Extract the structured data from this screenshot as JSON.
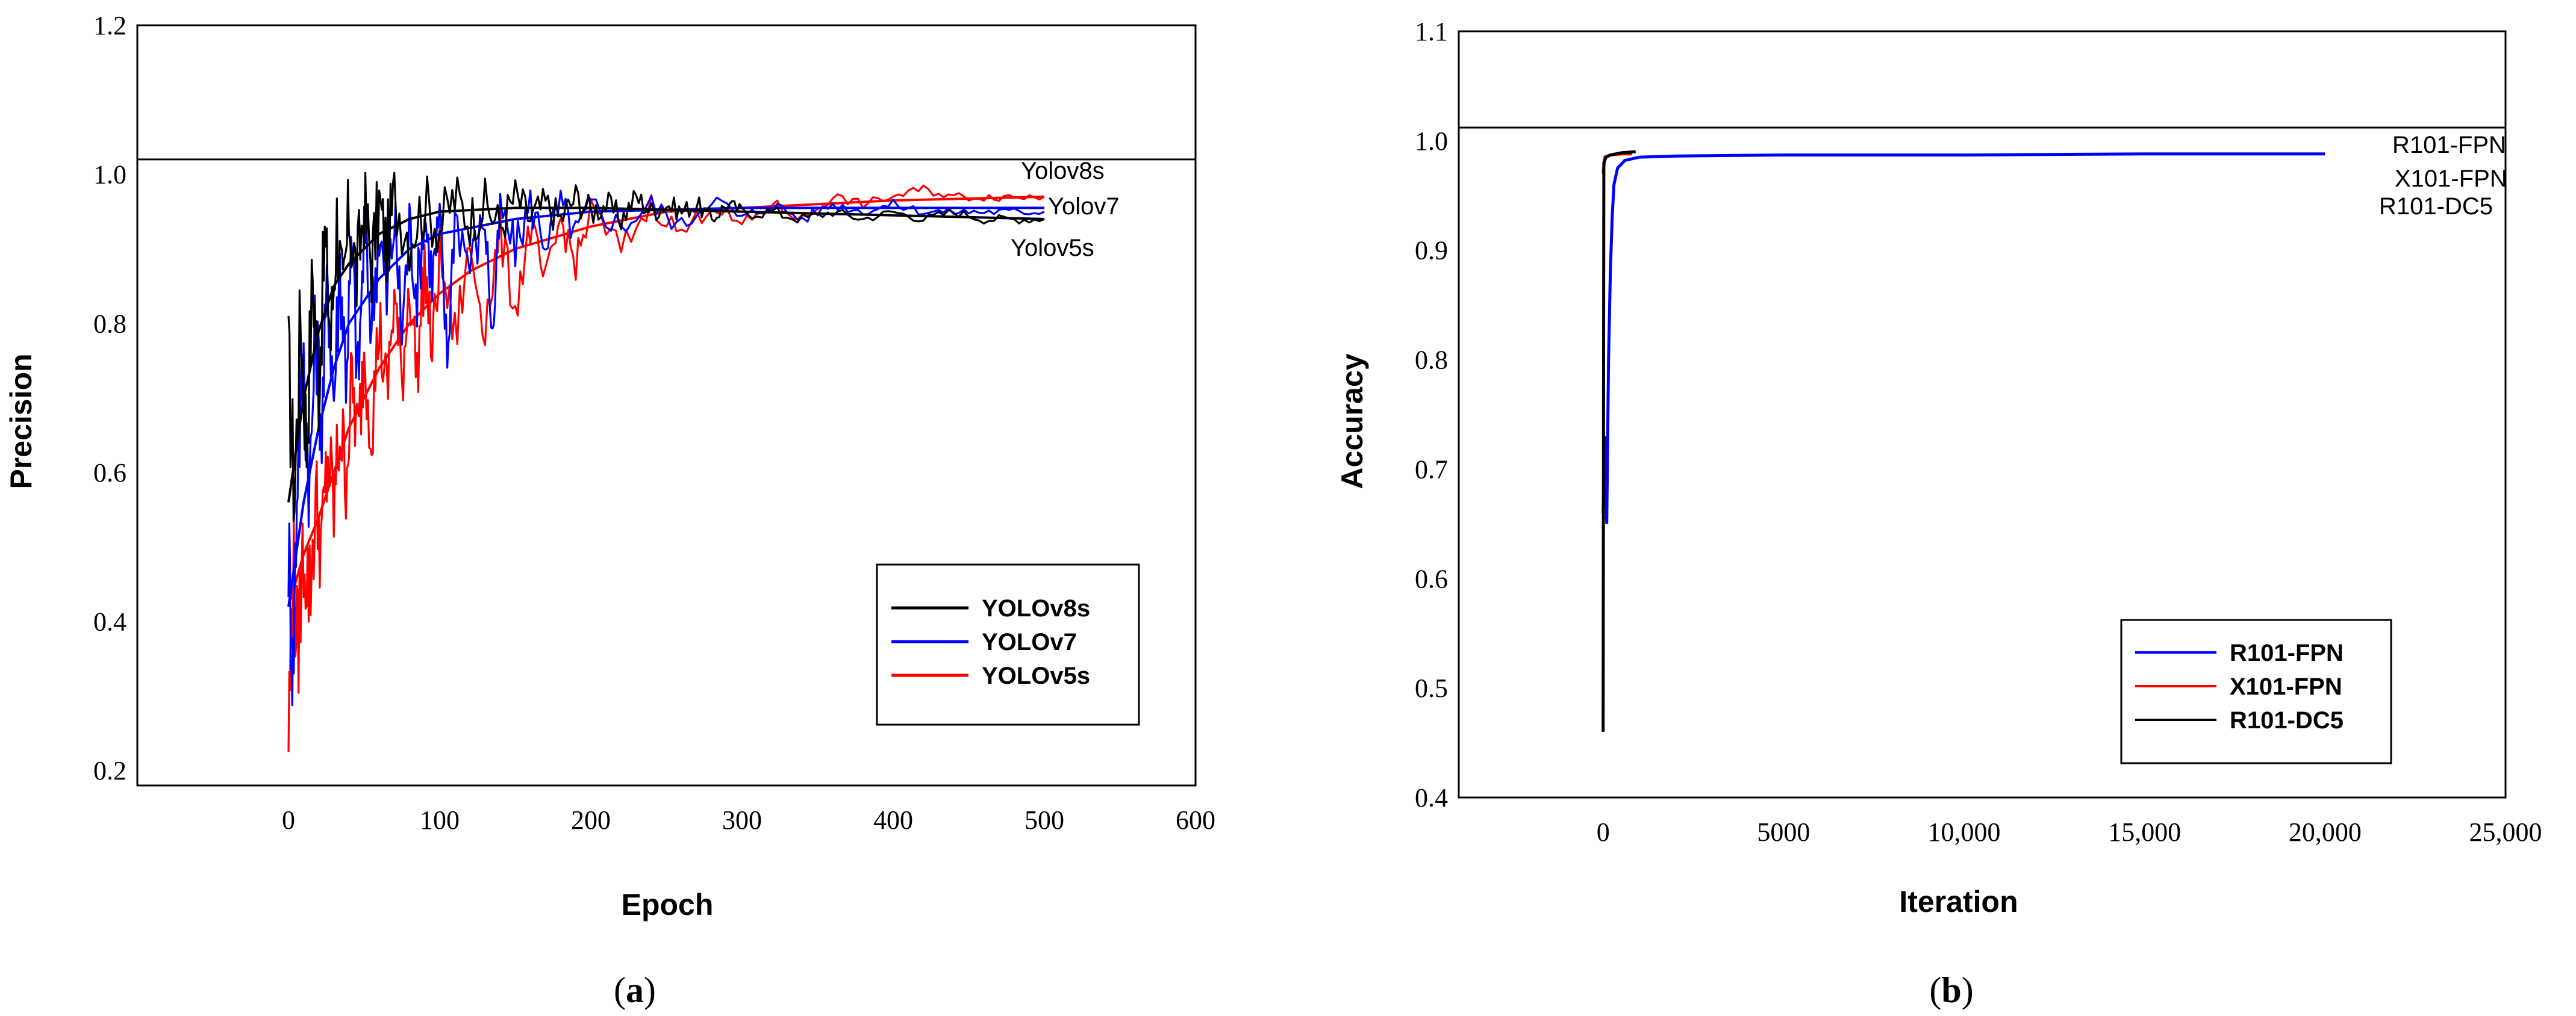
{
  "chart_data": [
    {
      "panel_label": "a",
      "type": "line",
      "title": "",
      "xlabel": "Epoch",
      "ylabel": "Precision",
      "xlim": [
        -100,
        600
      ],
      "ylim": [
        0.18,
        1.2
      ],
      "x_ticks": [
        0,
        100,
        200,
        300,
        400,
        500,
        600
      ],
      "y_ticks": [
        0.2,
        0.4,
        0.6,
        0.8,
        1.0,
        1.2
      ],
      "y_tick_labels": [
        "0.2",
        "0.4",
        "0.6",
        "0.8",
        "1.0",
        "1.2"
      ],
      "reference_line_y": 1.02,
      "grid": false,
      "legend_position": "lower-right",
      "series": [
        {
          "name": "YOLOv8s",
          "color": "#000000",
          "raw": [
            [
              0,
              0.74
            ],
            [
              4,
              0.57
            ],
            [
              8,
              0.81
            ],
            [
              12,
              0.64
            ],
            [
              16,
              0.87
            ],
            [
              20,
              0.72
            ],
            [
              24,
              0.91
            ],
            [
              28,
              0.78
            ],
            [
              32,
              0.94
            ],
            [
              36,
              0.82
            ],
            [
              40,
              0.95
            ],
            [
              45,
              0.86
            ],
            [
              50,
              0.96
            ],
            [
              55,
              0.88
            ],
            [
              60,
              0.96
            ],
            [
              65,
              0.9
            ],
            [
              70,
              0.97
            ],
            [
              80,
              0.92
            ],
            [
              90,
              0.96
            ],
            [
              100,
              0.93
            ],
            [
              110,
              0.97
            ],
            [
              120,
              0.94
            ],
            [
              130,
              0.96
            ],
            [
              140,
              0.93
            ],
            [
              150,
              0.97
            ],
            [
              160,
              0.94
            ],
            [
              170,
              0.96
            ],
            [
              180,
              0.94
            ],
            [
              190,
              0.97
            ],
            [
              200,
              0.95
            ],
            [
              210,
              0.96
            ],
            [
              220,
              0.94
            ],
            [
              230,
              0.97
            ],
            [
              240,
              0.95
            ],
            [
              250,
              0.96
            ],
            [
              260,
              0.95
            ],
            [
              270,
              0.96
            ],
            [
              280,
              0.94
            ],
            [
              290,
              0.96
            ],
            [
              300,
              0.95
            ],
            [
              320,
              0.95
            ],
            [
              340,
              0.94
            ],
            [
              360,
              0.95
            ],
            [
              380,
              0.94
            ],
            [
              400,
              0.95
            ],
            [
              420,
              0.94
            ],
            [
              440,
              0.95
            ],
            [
              460,
              0.94
            ],
            [
              480,
              0.94
            ],
            [
              500,
              0.94
            ]
          ],
          "smooth": [
            [
              0,
              0.56
            ],
            [
              10,
              0.7
            ],
            [
              20,
              0.79
            ],
            [
              30,
              0.85
            ],
            [
              40,
              0.88
            ],
            [
              60,
              0.92
            ],
            [
              80,
              0.94
            ],
            [
              100,
              0.95
            ],
            [
              150,
              0.955
            ],
            [
              200,
              0.955
            ],
            [
              300,
              0.95
            ],
            [
              400,
              0.945
            ],
            [
              500,
              0.94
            ]
          ],
          "end_label": "Yolov8s"
        },
        {
          "name": "YOLOv7",
          "color": "#0000ff",
          "raw": [
            [
              0,
              0.5
            ],
            [
              3,
              0.33
            ],
            [
              6,
              0.62
            ],
            [
              10,
              0.74
            ],
            [
              14,
              0.58
            ],
            [
              18,
              0.8
            ],
            [
              22,
              0.66
            ],
            [
              26,
              0.86
            ],
            [
              30,
              0.7
            ],
            [
              34,
              0.88
            ],
            [
              38,
              0.74
            ],
            [
              42,
              0.9
            ],
            [
              46,
              0.72
            ],
            [
              50,
              0.92
            ],
            [
              55,
              0.8
            ],
            [
              60,
              0.93
            ],
            [
              65,
              0.83
            ],
            [
              70,
              0.94
            ],
            [
              75,
              0.79
            ],
            [
              80,
              0.93
            ],
            [
              85,
              0.84
            ],
            [
              90,
              0.95
            ],
            [
              95,
              0.86
            ],
            [
              100,
              0.94
            ],
            [
              105,
              0.75
            ],
            [
              110,
              0.95
            ],
            [
              120,
              0.88
            ],
            [
              130,
              0.94
            ],
            [
              135,
              0.78
            ],
            [
              140,
              0.95
            ],
            [
              150,
              0.9
            ],
            [
              160,
              0.96
            ],
            [
              170,
              0.91
            ],
            [
              180,
              0.96
            ],
            [
              190,
              0.92
            ],
            [
              200,
              0.96
            ],
            [
              220,
              0.93
            ],
            [
              240,
              0.96
            ],
            [
              260,
              0.93
            ],
            [
              280,
              0.97
            ],
            [
              300,
              0.94
            ],
            [
              320,
              0.96
            ],
            [
              340,
              0.94
            ],
            [
              360,
              0.96
            ],
            [
              380,
              0.95
            ],
            [
              400,
              0.96
            ],
            [
              420,
              0.95
            ],
            [
              440,
              0.95
            ],
            [
              460,
              0.95
            ],
            [
              480,
              0.95
            ],
            [
              500,
              0.95
            ]
          ],
          "smooth": [
            [
              0,
              0.42
            ],
            [
              10,
              0.56
            ],
            [
              20,
              0.66
            ],
            [
              30,
              0.74
            ],
            [
              40,
              0.8
            ],
            [
              60,
              0.86
            ],
            [
              80,
              0.9
            ],
            [
              100,
              0.92
            ],
            [
              150,
              0.94
            ],
            [
              200,
              0.95
            ],
            [
              300,
              0.955
            ],
            [
              400,
              0.955
            ],
            [
              500,
              0.955
            ]
          ],
          "end_label": "Yolov7"
        },
        {
          "name": "YOLOv5s",
          "color": "#ff0000",
          "raw": [
            [
              0,
              0.25
            ],
            [
              3,
              0.48
            ],
            [
              6,
              0.36
            ],
            [
              10,
              0.5
            ],
            [
              14,
              0.44
            ],
            [
              18,
              0.56
            ],
            [
              22,
              0.5
            ],
            [
              26,
              0.62
            ],
            [
              30,
              0.55
            ],
            [
              34,
              0.66
            ],
            [
              38,
              0.6
            ],
            [
              42,
              0.72
            ],
            [
              46,
              0.64
            ],
            [
              50,
              0.76
            ],
            [
              55,
              0.66
            ],
            [
              60,
              0.8
            ],
            [
              65,
              0.7
            ],
            [
              70,
              0.84
            ],
            [
              75,
              0.72
            ],
            [
              80,
              0.86
            ],
            [
              85,
              0.73
            ],
            [
              90,
              0.88
            ],
            [
              95,
              0.76
            ],
            [
              100,
              0.89
            ],
            [
              110,
              0.78
            ],
            [
              120,
              0.9
            ],
            [
              130,
              0.8
            ],
            [
              140,
              0.92
            ],
            [
              150,
              0.82
            ],
            [
              160,
              0.93
            ],
            [
              170,
              0.85
            ],
            [
              180,
              0.94
            ],
            [
              190,
              0.88
            ],
            [
              200,
              0.95
            ],
            [
              220,
              0.9
            ],
            [
              240,
              0.96
            ],
            [
              260,
              0.92
            ],
            [
              280,
              0.96
            ],
            [
              300,
              0.93
            ],
            [
              320,
              0.96
            ],
            [
              340,
              0.94
            ],
            [
              360,
              0.97
            ],
            [
              380,
              0.96
            ],
            [
              400,
              0.97
            ],
            [
              420,
              0.98
            ],
            [
              440,
              0.97
            ],
            [
              460,
              0.97
            ],
            [
              480,
              0.97
            ],
            [
              500,
              0.97
            ]
          ],
          "smooth": [
            [
              0,
              0.42
            ],
            [
              10,
              0.49
            ],
            [
              20,
              0.54
            ],
            [
              30,
              0.6
            ],
            [
              40,
              0.66
            ],
            [
              50,
              0.7
            ],
            [
              60,
              0.74
            ],
            [
              80,
              0.8
            ],
            [
              100,
              0.84
            ],
            [
              120,
              0.87
            ],
            [
              150,
              0.9
            ],
            [
              200,
              0.93
            ],
            [
              250,
              0.95
            ],
            [
              300,
              0.955
            ],
            [
              400,
              0.965
            ],
            [
              500,
              0.97
            ]
          ],
          "end_label": "Yolov5s"
        }
      ]
    },
    {
      "panel_label": "b",
      "type": "line",
      "title": "",
      "xlabel": "Iteration",
      "ylabel": "Accuracy",
      "xlim": [
        -4000,
        25000
      ],
      "ylim": [
        0.4,
        1.1
      ],
      "x_ticks": [
        0,
        5000,
        10000,
        15000,
        20000,
        25000
      ],
      "x_tick_labels": [
        "0",
        "5000",
        "10,000",
        "15,000",
        "20,000",
        "25,000"
      ],
      "y_ticks": [
        0.4,
        0.5,
        0.6,
        0.7,
        0.8,
        0.9,
        1.0,
        1.1
      ],
      "y_tick_labels": [
        "0.4",
        "0.5",
        "0.6",
        "0.7",
        "0.8",
        "0.9",
        "1.0",
        "1.1"
      ],
      "reference_line_y": 1.012,
      "grid": false,
      "legend_position": "lower-right",
      "series": [
        {
          "name": "R101-FPN",
          "color": "#0000ff",
          "points": [
            [
              0,
              0.66
            ],
            [
              50,
              0.73
            ],
            [
              100,
              0.65
            ],
            [
              150,
              0.8
            ],
            [
              200,
              0.88
            ],
            [
              250,
              0.93
            ],
            [
              300,
              0.96
            ],
            [
              400,
              0.975
            ],
            [
              600,
              0.982
            ],
            [
              1000,
              0.985
            ],
            [
              2000,
              0.986
            ],
            [
              5000,
              0.987
            ],
            [
              10000,
              0.987
            ],
            [
              15000,
              0.988
            ],
            [
              20000,
              0.988
            ]
          ],
          "end_label": "R101-FPN"
        },
        {
          "name": "X101-FPN",
          "color": "#ff0000",
          "points": [
            [
              0,
              0.97
            ],
            [
              50,
              0.985
            ],
            [
              200,
              0.987
            ],
            [
              500,
              0.988
            ],
            [
              800,
              0.988
            ]
          ],
          "end_label": "X101-FPN"
        },
        {
          "name": "R101-DC5",
          "color": "#000000",
          "points": [
            [
              0,
              0.46
            ],
            [
              20,
              0.98
            ],
            [
              80,
              0.985
            ],
            [
              200,
              0.987
            ],
            [
              500,
              0.989
            ],
            [
              900,
              0.99
            ]
          ],
          "end_label": "R101-DC5"
        }
      ]
    }
  ]
}
